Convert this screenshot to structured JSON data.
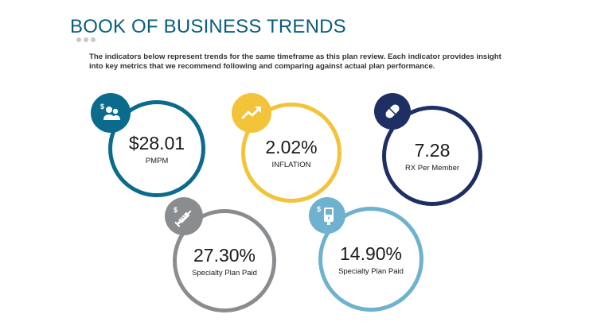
{
  "header": {
    "title": "BOOK OF BUSINESS TRENDS",
    "description": "The indicators below represent trends for the same timeframe as this plan review. Each indicator provides insight into key metrics that we recommend following and comparing against actual plan performance."
  },
  "indicators": [
    {
      "value": "$28.01",
      "label": "PMPM",
      "color": "#0b6b8c",
      "icon": "members-dollar-icon"
    },
    {
      "value": "2.02%",
      "label": "INFLATION",
      "color": "#f3c33a",
      "icon": "trend-up-icon"
    },
    {
      "value": "7.28",
      "label": "RX Per Member",
      "color": "#1e2f63",
      "icon": "pill-icon"
    },
    {
      "value": "27.30%",
      "label": "Specialty Plan Paid",
      "color": "#8a8d90",
      "icon": "syringe-dollar-icon"
    },
    {
      "value": "14.90%",
      "label": "Specialty Plan Paid",
      "color": "#6fb2cf",
      "icon": "glucose-meter-dollar-icon"
    }
  ]
}
